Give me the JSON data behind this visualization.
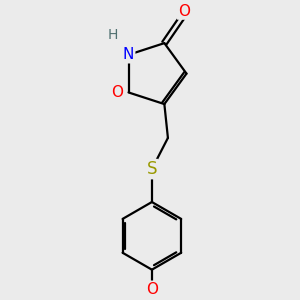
{
  "bg_color": "#ebebeb",
  "bond_color": "#000000",
  "atom_colors": {
    "O": "#ff0000",
    "N": "#0000ff",
    "S": "#999900",
    "H": "#507070",
    "C": "#000000"
  },
  "font_size_atom": 11,
  "font_size_h": 10,
  "lw": 1.6
}
